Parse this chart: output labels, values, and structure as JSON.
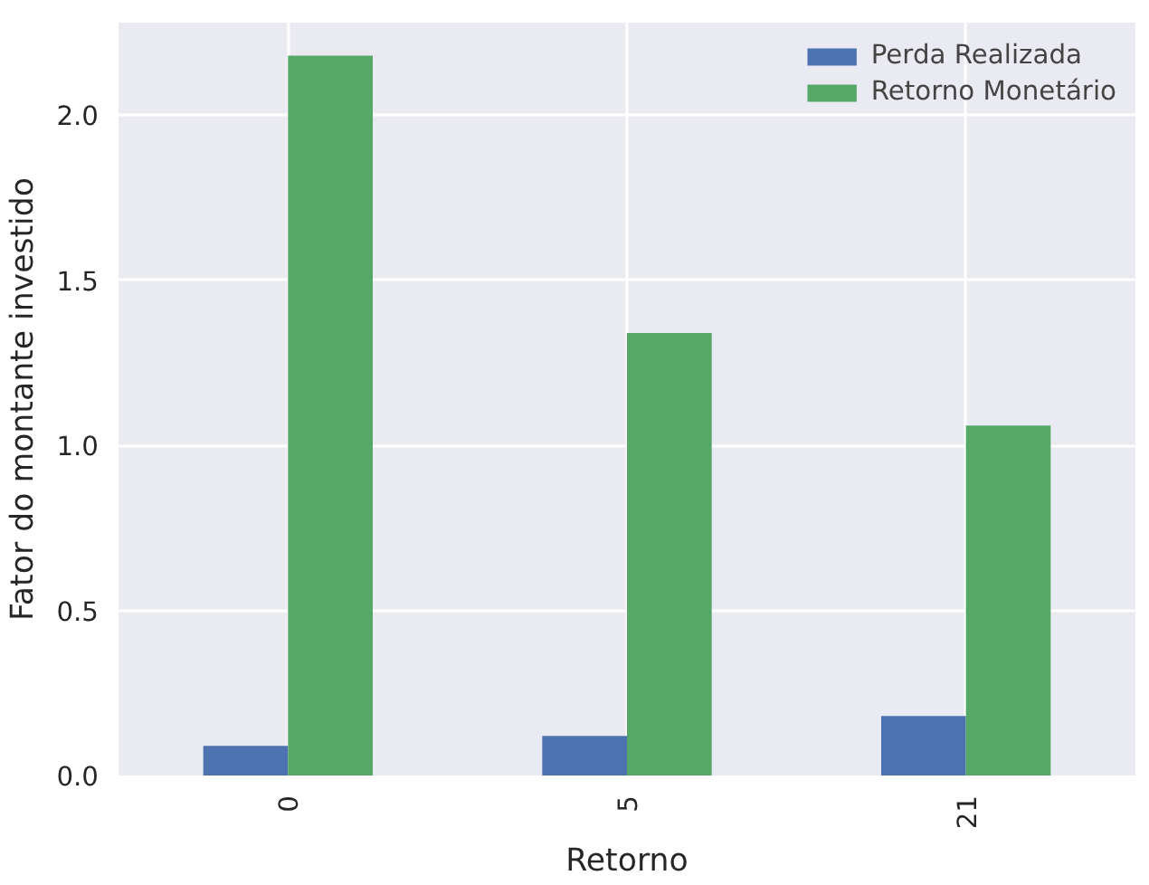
{
  "chart_data": {
    "type": "bar",
    "xlabel": "Retorno",
    "ylabel": "Fator do montante investido",
    "categories": [
      "0",
      "5",
      "21"
    ],
    "series": [
      {
        "name": "Perda Realizada",
        "color": "#4c72b0",
        "values": [
          0.09,
          0.12,
          0.18
        ]
      },
      {
        "name": "Retorno Monetário",
        "color": "#55a868",
        "values": [
          2.18,
          1.34,
          1.06
        ]
      }
    ],
    "ylim": [
      0,
      2.28
    ],
    "yticks": [
      {
        "value": 0,
        "label": "0.0"
      },
      {
        "value": 0.5,
        "label": "0.5"
      },
      {
        "value": 1,
        "label": "1.0"
      },
      {
        "value": 1.5,
        "label": "1.5"
      },
      {
        "value": 2,
        "label": "2.0"
      }
    ],
    "grid": true,
    "legend": "top right"
  }
}
